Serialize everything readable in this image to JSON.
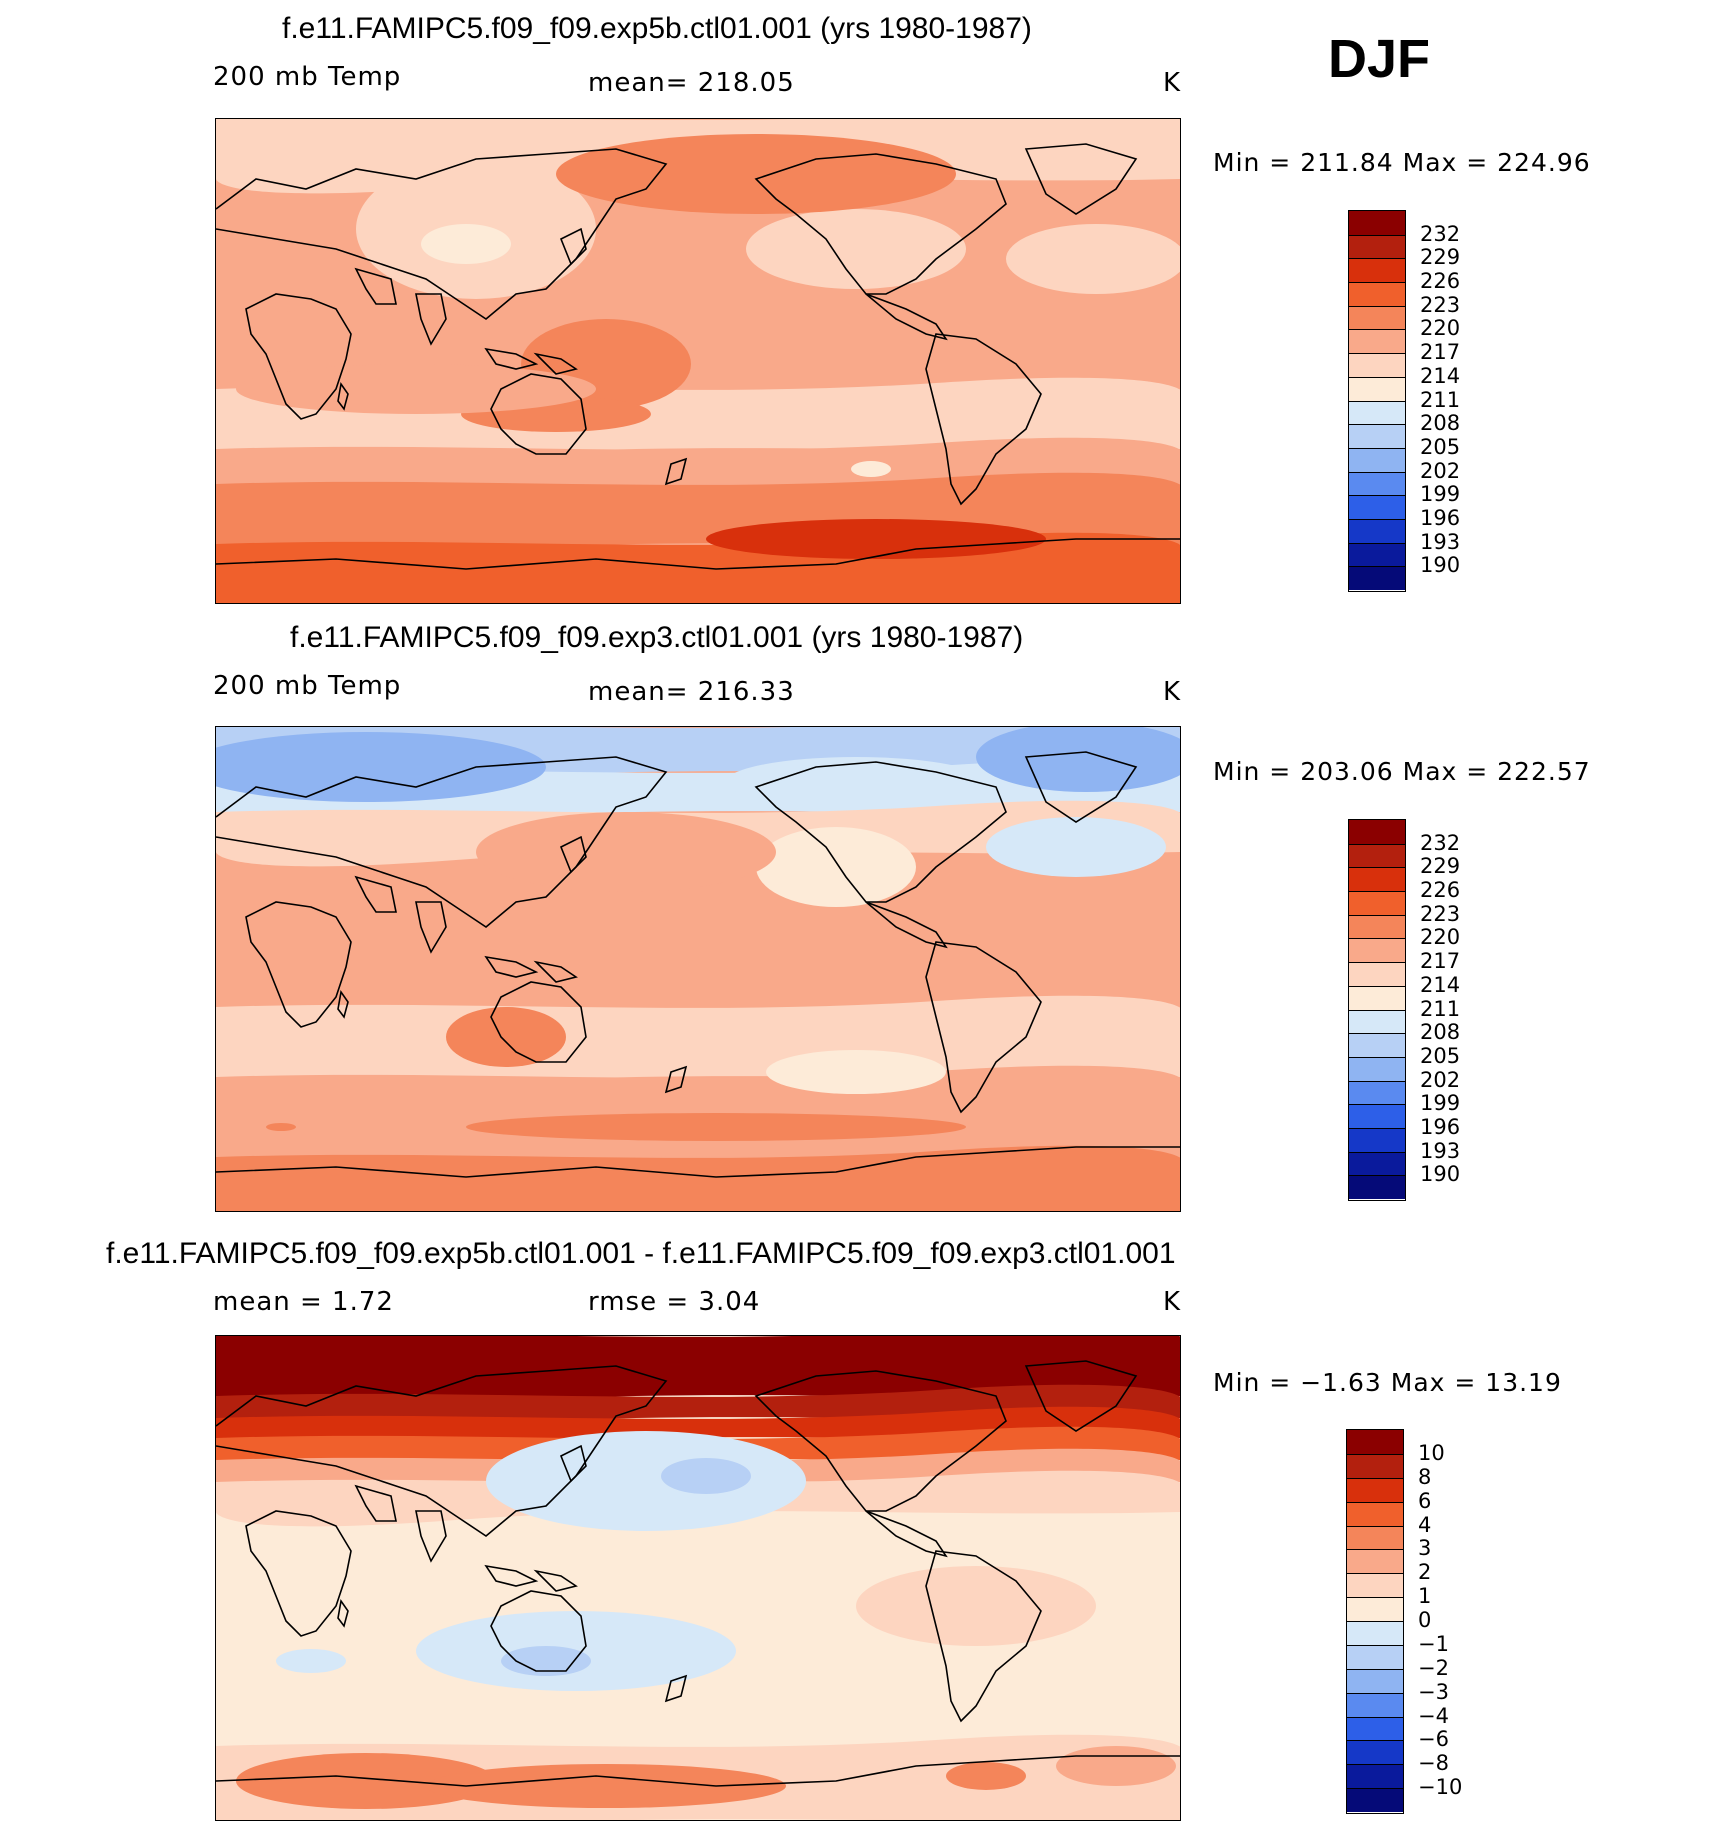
{
  "season": "DJF",
  "panels": [
    {
      "title": "f.e11.FAMIPC5.f09_f09.exp5b.ctl01.001 (yrs 1980-1987)",
      "left_label": "200 mb Temp",
      "mid_label": "mean=  218.05",
      "unit": "K",
      "minmax": "Min  =  211.84  Max  =  224.96",
      "colorbar_labels": [
        "232",
        "229",
        "226",
        "223",
        "220",
        "217",
        "214",
        "211",
        "208",
        "205",
        "202",
        "199",
        "196",
        "193",
        "190"
      ],
      "colorbar_colors": [
        "#8b0000",
        "#b3200e",
        "#d8300c",
        "#f0602c",
        "#f4855a",
        "#f9a98a",
        "#fdd5c0",
        "#fdebd8",
        "#d6e8f8",
        "#b7d0f5",
        "#8fb4f2",
        "#5a8af0",
        "#2d5fe8",
        "#1538c8",
        "#0a1a9c",
        "#050a78"
      ],
      "map": {
        "base_color": "#f9a98a",
        "bands": [
          {
            "y": 0,
            "h": 60,
            "color": "#fdd5c0"
          },
          {
            "y": 270,
            "h": 60,
            "color": "#fdd5c0"
          },
          {
            "y": 330,
            "h": 35,
            "color": "#f9a98a"
          },
          {
            "y": 365,
            "h": 60,
            "color": "#f4855a"
          },
          {
            "y": 425,
            "h": 60,
            "color": "#f0602c"
          }
        ],
        "blobs": [
          {
            "cx": 260,
            "cy": 110,
            "rx": 120,
            "ry": 70,
            "color": "#fdd5c0"
          },
          {
            "cx": 250,
            "cy": 125,
            "rx": 45,
            "ry": 20,
            "color": "#fdebd8"
          },
          {
            "cx": 640,
            "cy": 130,
            "rx": 110,
            "ry": 40,
            "color": "#fdd5c0"
          },
          {
            "cx": 880,
            "cy": 140,
            "rx": 90,
            "ry": 35,
            "color": "#fdd5c0"
          },
          {
            "cx": 540,
            "cy": 55,
            "rx": 200,
            "ry": 40,
            "color": "#f4855a"
          },
          {
            "cx": 390,
            "cy": 245,
            "rx": 85,
            "ry": 45,
            "color": "#f4855a"
          },
          {
            "cx": 340,
            "cy": 295,
            "rx": 95,
            "ry": 18,
            "color": "#f4855a"
          },
          {
            "cx": 200,
            "cy": 270,
            "rx": 180,
            "ry": 25,
            "color": "#f9a98a"
          },
          {
            "cx": 655,
            "cy": 350,
            "rx": 20,
            "ry": 8,
            "color": "#fdebd8"
          },
          {
            "cx": 660,
            "cy": 420,
            "rx": 170,
            "ry": 20,
            "color": "#d8300c"
          }
        ]
      }
    },
    {
      "title": "f.e11.FAMIPC5.f09_f09.exp3.ctl01.001 (yrs 1980-1987)",
      "left_label": "200 mb Temp",
      "mid_label": "mean=  216.33",
      "unit": "K",
      "minmax": "Min  =  203.06  Max  =  222.57",
      "colorbar_labels": [
        "232",
        "229",
        "226",
        "223",
        "220",
        "217",
        "214",
        "211",
        "208",
        "205",
        "202",
        "199",
        "196",
        "193",
        "190"
      ],
      "colorbar_colors": [
        "#8b0000",
        "#b3200e",
        "#d8300c",
        "#f0602c",
        "#f4855a",
        "#f9a98a",
        "#fdd5c0",
        "#fdebd8",
        "#d6e8f8",
        "#b7d0f5",
        "#8fb4f2",
        "#5a8af0",
        "#2d5fe8",
        "#1538c8",
        "#0a1a9c",
        "#050a78"
      ],
      "map": {
        "base_color": "#f9a98a",
        "bands": [
          {
            "y": 0,
            "h": 45,
            "color": "#b7d0f5"
          },
          {
            "y": 45,
            "h": 40,
            "color": "#d6e8f8"
          },
          {
            "y": 85,
            "h": 40,
            "color": "#fdd5c0"
          },
          {
            "y": 280,
            "h": 70,
            "color": "#fdd5c0"
          },
          {
            "y": 350,
            "h": 80,
            "color": "#f9a98a"
          },
          {
            "y": 430,
            "h": 55,
            "color": "#f4855a"
          }
        ],
        "blobs": [
          {
            "cx": 150,
            "cy": 40,
            "rx": 180,
            "ry": 35,
            "color": "#8fb4f2"
          },
          {
            "cx": 870,
            "cy": 30,
            "rx": 110,
            "ry": 35,
            "color": "#8fb4f2"
          },
          {
            "cx": 640,
            "cy": 55,
            "rx": 130,
            "ry": 25,
            "color": "#d6e8f8"
          },
          {
            "cx": 860,
            "cy": 120,
            "rx": 90,
            "ry": 30,
            "color": "#d6e8f8"
          },
          {
            "cx": 620,
            "cy": 140,
            "rx": 80,
            "ry": 40,
            "color": "#fdebd8"
          },
          {
            "cx": 410,
            "cy": 125,
            "rx": 150,
            "ry": 40,
            "color": "#f9a98a"
          },
          {
            "cx": 290,
            "cy": 310,
            "rx": 60,
            "ry": 30,
            "color": "#f4855a"
          },
          {
            "cx": 640,
            "cy": 345,
            "rx": 90,
            "ry": 22,
            "color": "#fdebd8"
          },
          {
            "cx": 500,
            "cy": 400,
            "rx": 250,
            "ry": 14,
            "color": "#f4855a"
          },
          {
            "cx": 65,
            "cy": 400,
            "rx": 15,
            "ry": 4,
            "color": "#f4855a"
          }
        ]
      }
    },
    {
      "title": "f.e11.FAMIPC5.f09_f09.exp5b.ctl01.001 - f.e11.FAMIPC5.f09_f09.exp3.ctl01.001",
      "left_label": "mean  =     1.72",
      "mid_label": "rmse  =     3.04",
      "unit": "K",
      "minmax": "Min  =   −1.63  Max  =    13.19",
      "colorbar_labels": [
        "10",
        "8",
        "6",
        "4",
        "3",
        "2",
        "1",
        "0",
        "−1",
        "−2",
        "−3",
        "−4",
        "−6",
        "−8",
        "−10"
      ],
      "colorbar_colors": [
        "#8b0000",
        "#b3200e",
        "#d8300c",
        "#f0602c",
        "#f4855a",
        "#f9a98a",
        "#fdd5c0",
        "#fdebd8",
        "#d6e8f8",
        "#b7d0f5",
        "#8fb4f2",
        "#5a8af0",
        "#2d5fe8",
        "#1538c8",
        "#0a1a9c",
        "#050a78"
      ],
      "map": {
        "base_color": "#fdebd8",
        "bands": [
          {
            "y": 0,
            "h": 60,
            "color": "#8b0000"
          },
          {
            "y": 60,
            "h": 22,
            "color": "#b3200e"
          },
          {
            "y": 82,
            "h": 20,
            "color": "#d8300c"
          },
          {
            "y": 102,
            "h": 22,
            "color": "#f0602c"
          },
          {
            "y": 124,
            "h": 22,
            "color": "#f9a98a"
          },
          {
            "y": 146,
            "h": 30,
            "color": "#fdd5c0"
          },
          {
            "y": 410,
            "h": 74,
            "color": "#fdd5c0"
          }
        ],
        "blobs": [
          {
            "cx": 430,
            "cy": 145,
            "rx": 160,
            "ry": 50,
            "color": "#d6e8f8"
          },
          {
            "cx": 490,
            "cy": 140,
            "rx": 45,
            "ry": 18,
            "color": "#b7d0f5"
          },
          {
            "cx": 360,
            "cy": 315,
            "rx": 160,
            "ry": 40,
            "color": "#d6e8f8"
          },
          {
            "cx": 330,
            "cy": 325,
            "rx": 45,
            "ry": 15,
            "color": "#b7d0f5"
          },
          {
            "cx": 95,
            "cy": 325,
            "rx": 35,
            "ry": 12,
            "color": "#d6e8f8"
          },
          {
            "cx": 760,
            "cy": 270,
            "rx": 120,
            "ry": 40,
            "color": "#fdd5c0"
          },
          {
            "cx": 150,
            "cy": 445,
            "rx": 130,
            "ry": 28,
            "color": "#f4855a"
          },
          {
            "cx": 390,
            "cy": 450,
            "rx": 180,
            "ry": 22,
            "color": "#f4855a"
          },
          {
            "cx": 770,
            "cy": 440,
            "rx": 40,
            "ry": 14,
            "color": "#f4855a"
          },
          {
            "cx": 900,
            "cy": 430,
            "rx": 60,
            "ry": 20,
            "color": "#f9a98a"
          }
        ]
      }
    }
  ]
}
